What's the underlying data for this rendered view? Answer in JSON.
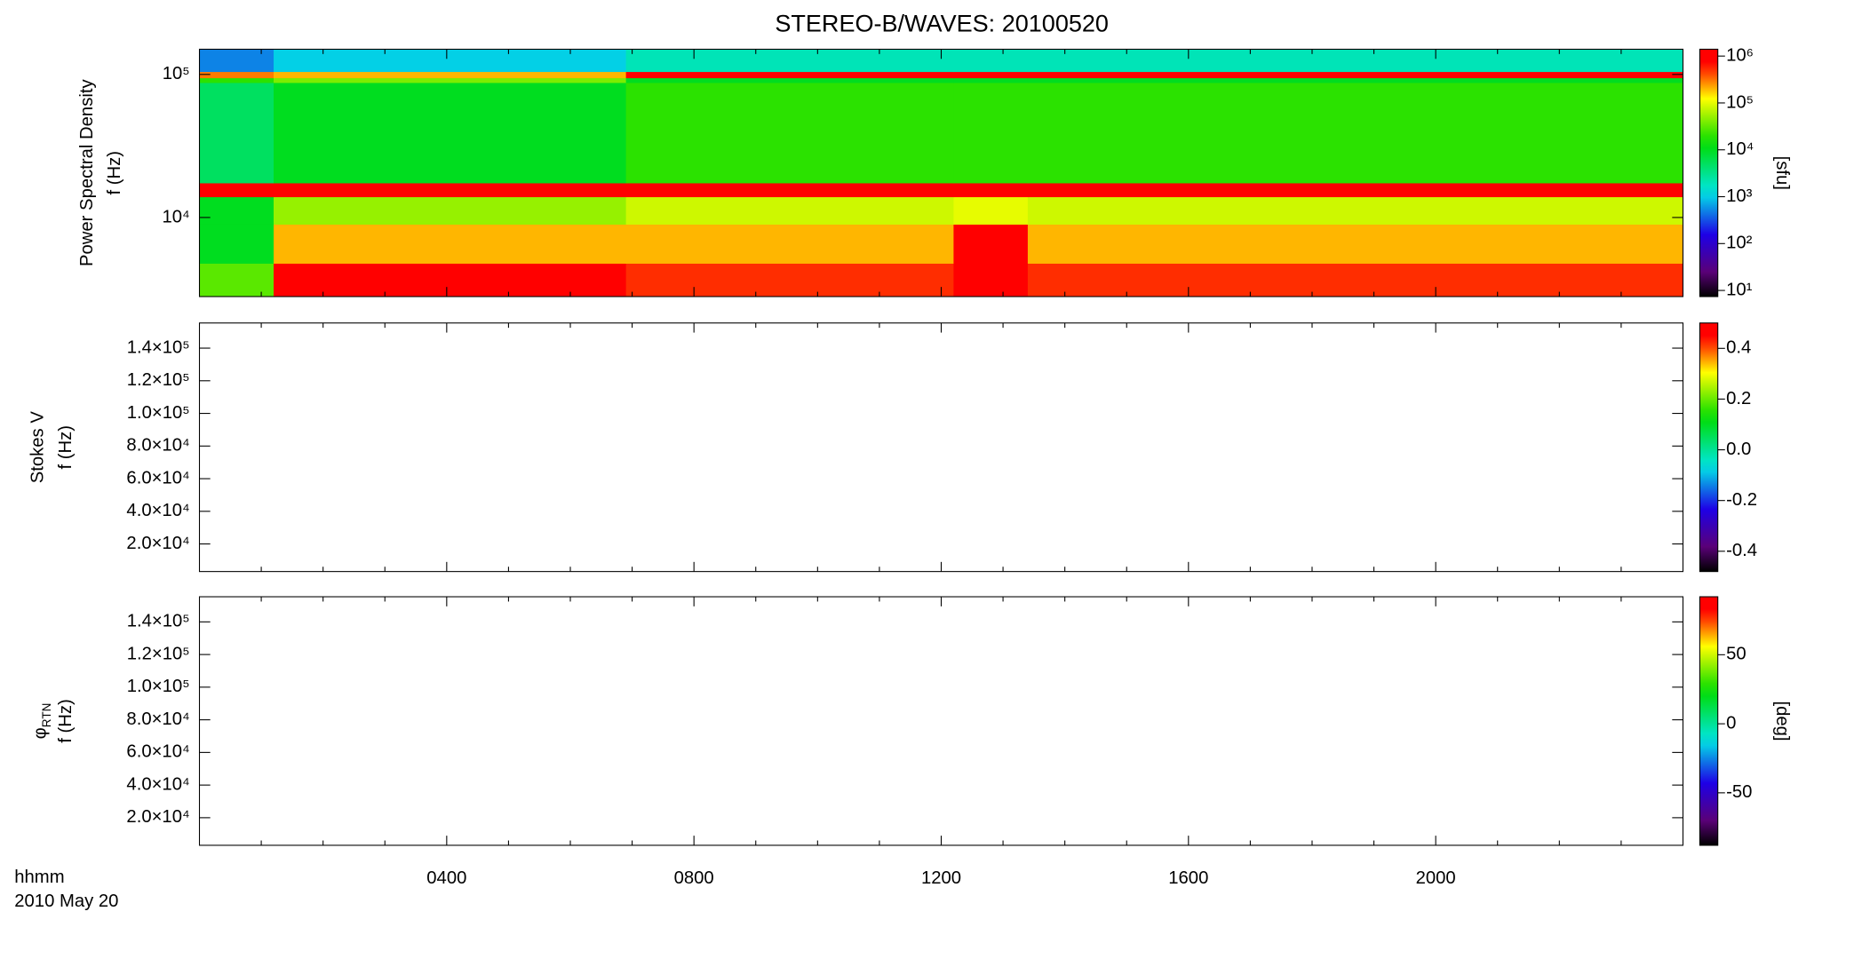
{
  "chart_data": [
    {
      "type": "heatmap",
      "title": "STEREO-B/WAVES: 20100520",
      "ylabel": [
        "Power Spectral Density",
        "f (Hz)"
      ],
      "xlim": [
        0,
        24
      ],
      "ylim": [
        2800,
        150000
      ],
      "ylog": true,
      "yticks": [
        {
          "value": 10000,
          "label": "10⁴"
        },
        {
          "value": 100000,
          "label": "10⁵"
        }
      ],
      "x": [
        0,
        1.2,
        6.9,
        12.2,
        13.4,
        24
      ],
      "y": [
        2800,
        4800,
        9000,
        14000,
        17500,
        88000,
        95000,
        105000,
        150000
      ],
      "z": [
        [
          30000,
          1000000,
          500000,
          1000000,
          500000
        ],
        [
          10000,
          200000,
          200000,
          1000000,
          200000
        ],
        [
          10000,
          50000,
          80000,
          100000,
          80000
        ],
        [
          800000,
          1000000,
          1000000,
          1000000,
          1000000
        ],
        [
          5000,
          10000,
          20000,
          20000,
          20000
        ],
        [
          20000,
          40000,
          10000,
          10000,
          10000
        ],
        [
          300000,
          200000,
          1000000,
          1000000,
          1000000
        ],
        [
          500,
          1000,
          2000,
          2000,
          2000
        ]
      ],
      "colorbar": {
        "label": "[sfu]",
        "clim": [
          7.4,
          1400000
        ],
        "log": true,
        "ticks": [
          {
            "value": 10,
            "label": "10¹"
          },
          {
            "value": 100,
            "label": "10²"
          },
          {
            "value": 1000,
            "label": "10³"
          },
          {
            "value": 10000,
            "label": "10⁴"
          },
          {
            "value": 100000,
            "label": "10⁵"
          },
          {
            "value": 1000000,
            "label": "10⁶"
          }
        ]
      }
    },
    {
      "type": "heatmap",
      "ylabel": [
        "Stokes V",
        "f (Hz)"
      ],
      "xlim": [
        0,
        24
      ],
      "ylim": [
        3100,
        155400
      ],
      "ylog": false,
      "yticks": [
        {
          "value": 20000,
          "label": "2.0×10⁴"
        },
        {
          "value": 40000,
          "label": "4.0×10⁴"
        },
        {
          "value": 60000,
          "label": "6.0×10⁴"
        },
        {
          "value": 80000,
          "label": "8.0×10⁴"
        },
        {
          "value": 100000,
          "label": "1.0×10⁵"
        },
        {
          "value": 120000,
          "label": "1.2×10⁵"
        },
        {
          "value": 140000,
          "label": "1.4×10⁵"
        }
      ],
      "colorbar": {
        "clim": [
          -0.48,
          0.5
        ],
        "log": false,
        "ticks": [
          -0.4,
          -0.2,
          {
            "value": 0,
            "label": "0.0"
          },
          0.2,
          0.4
        ]
      }
    },
    {
      "type": "heatmap",
      "ylabel": [
        "φ",
        "f (Hz)"
      ],
      "ylabel_subscript": "RTN",
      "xlim": [
        0,
        24
      ],
      "ylim": [
        3100,
        155400
      ],
      "ylog": false,
      "yticks": [
        {
          "value": 20000,
          "label": "2.0×10⁴"
        },
        {
          "value": 40000,
          "label": "4.0×10⁴"
        },
        {
          "value": 60000,
          "label": "6.0×10⁴"
        },
        {
          "value": 80000,
          "label": "8.0×10⁴"
        },
        {
          "value": 100000,
          "label": "1.0×10⁵"
        },
        {
          "value": 120000,
          "label": "1.2×10⁵"
        },
        {
          "value": 140000,
          "label": "1.4×10⁵"
        }
      ],
      "xticks": [
        {
          "value": 4,
          "label": "0400"
        },
        {
          "value": 8,
          "label": "0800"
        },
        {
          "value": 12,
          "label": "1200"
        },
        {
          "value": 16,
          "label": "1600"
        },
        {
          "value": 20,
          "label": "2000"
        }
      ],
      "xlabel": "hhmm",
      "date": "2010 May 20",
      "colorbar": {
        "label": "[deg]",
        "clim": [
          -88,
          92
        ],
        "log": false,
        "ticks": [
          -50,
          0,
          50
        ]
      }
    }
  ]
}
